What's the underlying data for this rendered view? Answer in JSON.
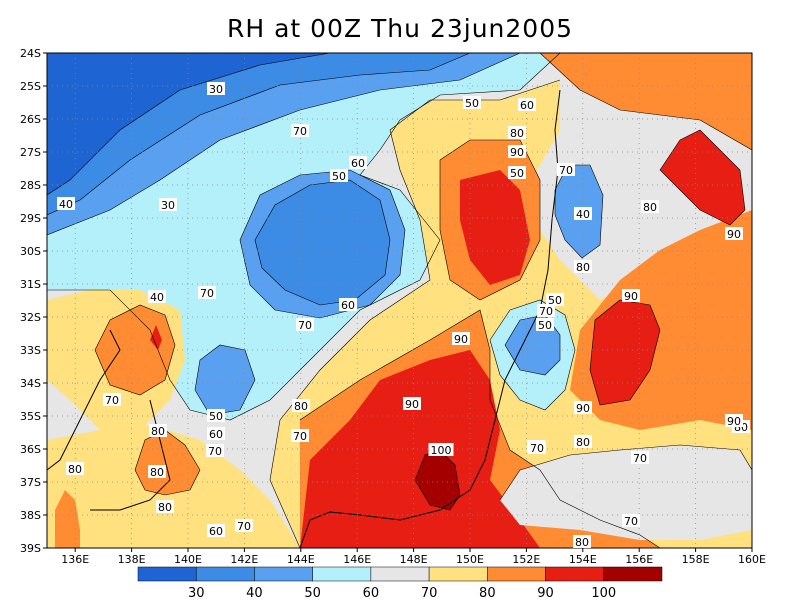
{
  "title": "RH at 00Z Thu 23jun2005",
  "map": {
    "lon_range": [
      135,
      160
    ],
    "lat_range": [
      -39,
      -24
    ],
    "lon_ticks": [
      "136E",
      "138E",
      "140E",
      "142E",
      "144E",
      "146E",
      "148E",
      "150E",
      "152E",
      "154E",
      "156E",
      "158E",
      "160E"
    ],
    "lat_ticks": [
      "24S",
      "25S",
      "26S",
      "27S",
      "28S",
      "29S",
      "30S",
      "31S",
      "32S",
      "33S",
      "34S",
      "35S",
      "36S",
      "37S",
      "38S",
      "39S"
    ],
    "grid": "dotted"
  },
  "colorbar": {
    "levels": [
      "30",
      "40",
      "50",
      "60",
      "70",
      "80",
      "90",
      "100"
    ],
    "colors": [
      "#1e64d2",
      "#3c8ce6",
      "#5aa0f0",
      "#b4f0fa",
      "#e6e6e6",
      "#ffe180",
      "#ff8c32",
      "#e61e14",
      "#a50000"
    ]
  },
  "contour_labels": [
    {
      "text": "30"
    },
    {
      "text": "50"
    },
    {
      "text": "60"
    },
    {
      "text": "70"
    },
    {
      "text": "80"
    },
    {
      "text": "90"
    },
    {
      "text": "60"
    },
    {
      "text": "50"
    },
    {
      "text": "40"
    },
    {
      "text": "30"
    },
    {
      "text": "70"
    },
    {
      "text": "50"
    },
    {
      "text": "40"
    },
    {
      "text": "80"
    },
    {
      "text": "90"
    },
    {
      "text": "80"
    },
    {
      "text": "70"
    },
    {
      "text": "40"
    },
    {
      "text": "50"
    },
    {
      "text": "70"
    },
    {
      "text": "90"
    },
    {
      "text": "90"
    },
    {
      "text": "70"
    },
    {
      "text": "60"
    },
    {
      "text": "50"
    },
    {
      "text": "90"
    },
    {
      "text": "80"
    },
    {
      "text": "90"
    },
    {
      "text": "70"
    },
    {
      "text": "80"
    },
    {
      "text": "50"
    },
    {
      "text": "60"
    },
    {
      "text": "70"
    },
    {
      "text": "80"
    },
    {
      "text": "70"
    },
    {
      "text": "80"
    },
    {
      "text": "100"
    },
    {
      "text": "70"
    },
    {
      "text": "80"
    },
    {
      "text": "70"
    },
    {
      "text": "60"
    },
    {
      "text": "70"
    },
    {
      "text": "80"
    },
    {
      "text": "90"
    },
    {
      "text": "70"
    },
    {
      "text": "80"
    },
    {
      "text": "80"
    },
    {
      "text": "70"
    }
  ]
}
